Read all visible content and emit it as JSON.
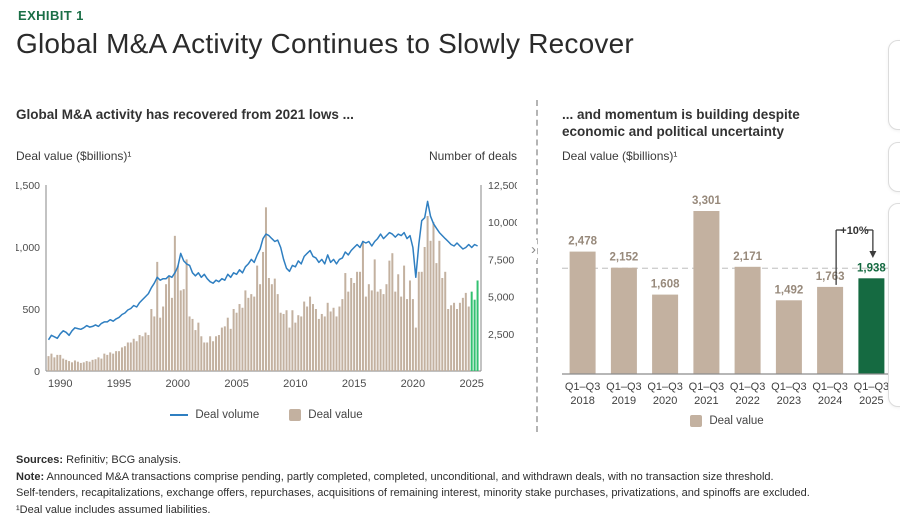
{
  "page": {
    "exhibit_label": "EXHIBIT 1",
    "title": "Global M&A Activity Continues to Slowly Recover"
  },
  "left_panel": {
    "heading": "Global M&A activity has recovered from 2021 lows ...",
    "left_axis_label": "Deal value ($billions)¹",
    "right_axis_label": "Number of deals",
    "legend": [
      {
        "marker": "line",
        "label": "Deal volume"
      },
      {
        "marker": "square",
        "label": "Deal value"
      }
    ]
  },
  "right_panel": {
    "heading_line1": "... and momentum is building despite",
    "heading_line2": "economic and political uncertainty",
    "axis_label": "Deal value ($billions)¹",
    "legend": [
      {
        "marker": "square",
        "label": "Deal value"
      }
    ]
  },
  "footer": {
    "sources_label": "Sources:",
    "sources_text": " Refinitiv; BCG analysis.",
    "note_label": "Note:",
    "note_text": " Announced M&A transactions comprise pending, partly completed, completed, unconditional, and withdrawn deals, with no transaction size threshold.",
    "note_line2": "Self-tenders, recapitalizations, exchange offers, repurchases, acquisitions of remaining interest, minority stake purchases, privatizations, and spinoffs are excluded.",
    "footnote": "¹Deal value includes assumed liabilities."
  },
  "colors": {
    "accent_green": "#1b6f47",
    "bar_tan": "#c3b1a0",
    "bar_green_bright": "#33c171",
    "bar_green_dark": "#156a41",
    "line_blue": "#2f7fc1",
    "value_label_gray": "#97897b",
    "axis_gray": "#9b9b9b",
    "tick_text": "#4c4c4c",
    "reference_dash": "#cfcfcf",
    "annotation_dark": "#3c3c3c"
  },
  "chart_data": [
    {
      "type": "combo-bar-line",
      "title": "Global M&A activity has recovered from 2021 lows ...",
      "frequency": "quarterly",
      "start_year": 1989,
      "left_axis": {
        "label": "Deal value ($billions)¹",
        "range": [
          0,
          1500
        ],
        "ticks": [
          0,
          500,
          1000,
          1500
        ]
      },
      "right_axis": {
        "label": "Number of deals",
        "range": [
          0,
          12500
        ],
        "ticks": [
          2500,
          5000,
          7500,
          10000,
          12500
        ]
      },
      "x_tick_years": [
        1990,
        1995,
        2000,
        2005,
        2010,
        2015,
        2020,
        2025
      ],
      "grid": false,
      "legend_position": "bottom",
      "highlight_last_bars": 3,
      "series": [
        {
          "name": "Deal value",
          "type": "bar",
          "axis": "left",
          "values": [
            120,
            140,
            110,
            130,
            130,
            100,
            90,
            80,
            70,
            85,
            75,
            65,
            70,
            80,
            75,
            90,
            95,
            110,
            100,
            140,
            130,
            150,
            140,
            160,
            160,
            190,
            200,
            230,
            230,
            260,
            240,
            290,
            280,
            310,
            290,
            500,
            440,
            880,
            430,
            520,
            700,
            760,
            590,
            1090,
            850,
            650,
            660,
            900,
            440,
            420,
            330,
            390,
            280,
            230,
            230,
            280,
            240,
            280,
            290,
            350,
            360,
            430,
            340,
            500,
            470,
            540,
            510,
            650,
            590,
            620,
            600,
            850,
            700,
            960,
            1320,
            750,
            700,
            745,
            620,
            470,
            460,
            490,
            350,
            490,
            390,
            450,
            440,
            560,
            520,
            600,
            540,
            500,
            420,
            460,
            440,
            550,
            480,
            510,
            440,
            520,
            580,
            790,
            640,
            750,
            710,
            800,
            800,
            1050,
            600,
            700,
            650,
            900,
            640,
            660,
            620,
            700,
            890,
            950,
            640,
            780,
            600,
            850,
            580,
            730,
            580,
            350,
            800,
            800,
            1000,
            1250,
            1050,
            1200,
            870,
            1050,
            750,
            800,
            500,
            530,
            550,
            500,
            550,
            590,
            630,
            520,
            640,
            575,
            730
          ]
        },
        {
          "name": "Deal volume",
          "type": "line",
          "axis": "right",
          "values": [
            2100,
            2400,
            2300,
            2200,
            2500,
            2700,
            2600,
            2400,
            2700,
            2900,
            2850,
            2800,
            2900,
            3050,
            2950,
            3000,
            3100,
            3000,
            3200,
            3300,
            3300,
            3450,
            3350,
            3500,
            3600,
            3800,
            3900,
            4100,
            4200,
            4400,
            4300,
            4600,
            4800,
            5000,
            5200,
            5600,
            5900,
            6300,
            6100,
            6200,
            6200,
            6400,
            6300,
            6600,
            7000,
            7900,
            7400,
            7200,
            7100,
            6600,
            6400,
            6600,
            6300,
            6500,
            6200,
            6000,
            5900,
            6100,
            6000,
            6200,
            6100,
            6500,
            6300,
            6600,
            6500,
            6800,
            6600,
            7000,
            7200,
            7500,
            7300,
            7800,
            8200,
            8900,
            9200,
            9100,
            8900,
            8700,
            8800,
            8300,
            7500,
            6900,
            6700,
            7100,
            7000,
            7400,
            7200,
            7700,
            7900,
            8100,
            7700,
            7600,
            7300,
            7500,
            7200,
            7800,
            7300,
            7500,
            7200,
            7500,
            7600,
            8000,
            7800,
            8100,
            8300,
            8500,
            8300,
            8700,
            8600,
            8700,
            8400,
            8700,
            8900,
            9200,
            8900,
            9100,
            9300,
            9200,
            9000,
            9200,
            9100,
            9300,
            8900,
            9100,
            8300,
            6300,
            8500,
            10100,
            10300,
            11400,
            10400,
            9900,
            9600,
            9300,
            9100,
            8900,
            8700,
            8500,
            8400,
            8600,
            8400,
            8200,
            8300,
            8500,
            8300,
            8500,
            8400
          ]
        }
      ]
    },
    {
      "type": "bar",
      "title": "... and momentum is building despite economic and political uncertainty",
      "ylabel": "Deal value ($billions)¹",
      "category_prefix": "Q1–Q3",
      "categories": [
        "2018",
        "2019",
        "2020",
        "2021",
        "2022",
        "2023",
        "2024",
        "2025"
      ],
      "values": [
        2478,
        2152,
        1608,
        3301,
        2171,
        1492,
        1763,
        1938
      ],
      "highlight_index": 7,
      "reference_line_value": 2140,
      "ylim": [
        0,
        3500
      ],
      "grid": false,
      "legend_position": "bottom",
      "annotation": {
        "text": "+10%",
        "from_index": 6,
        "to_index": 7
      }
    }
  ]
}
